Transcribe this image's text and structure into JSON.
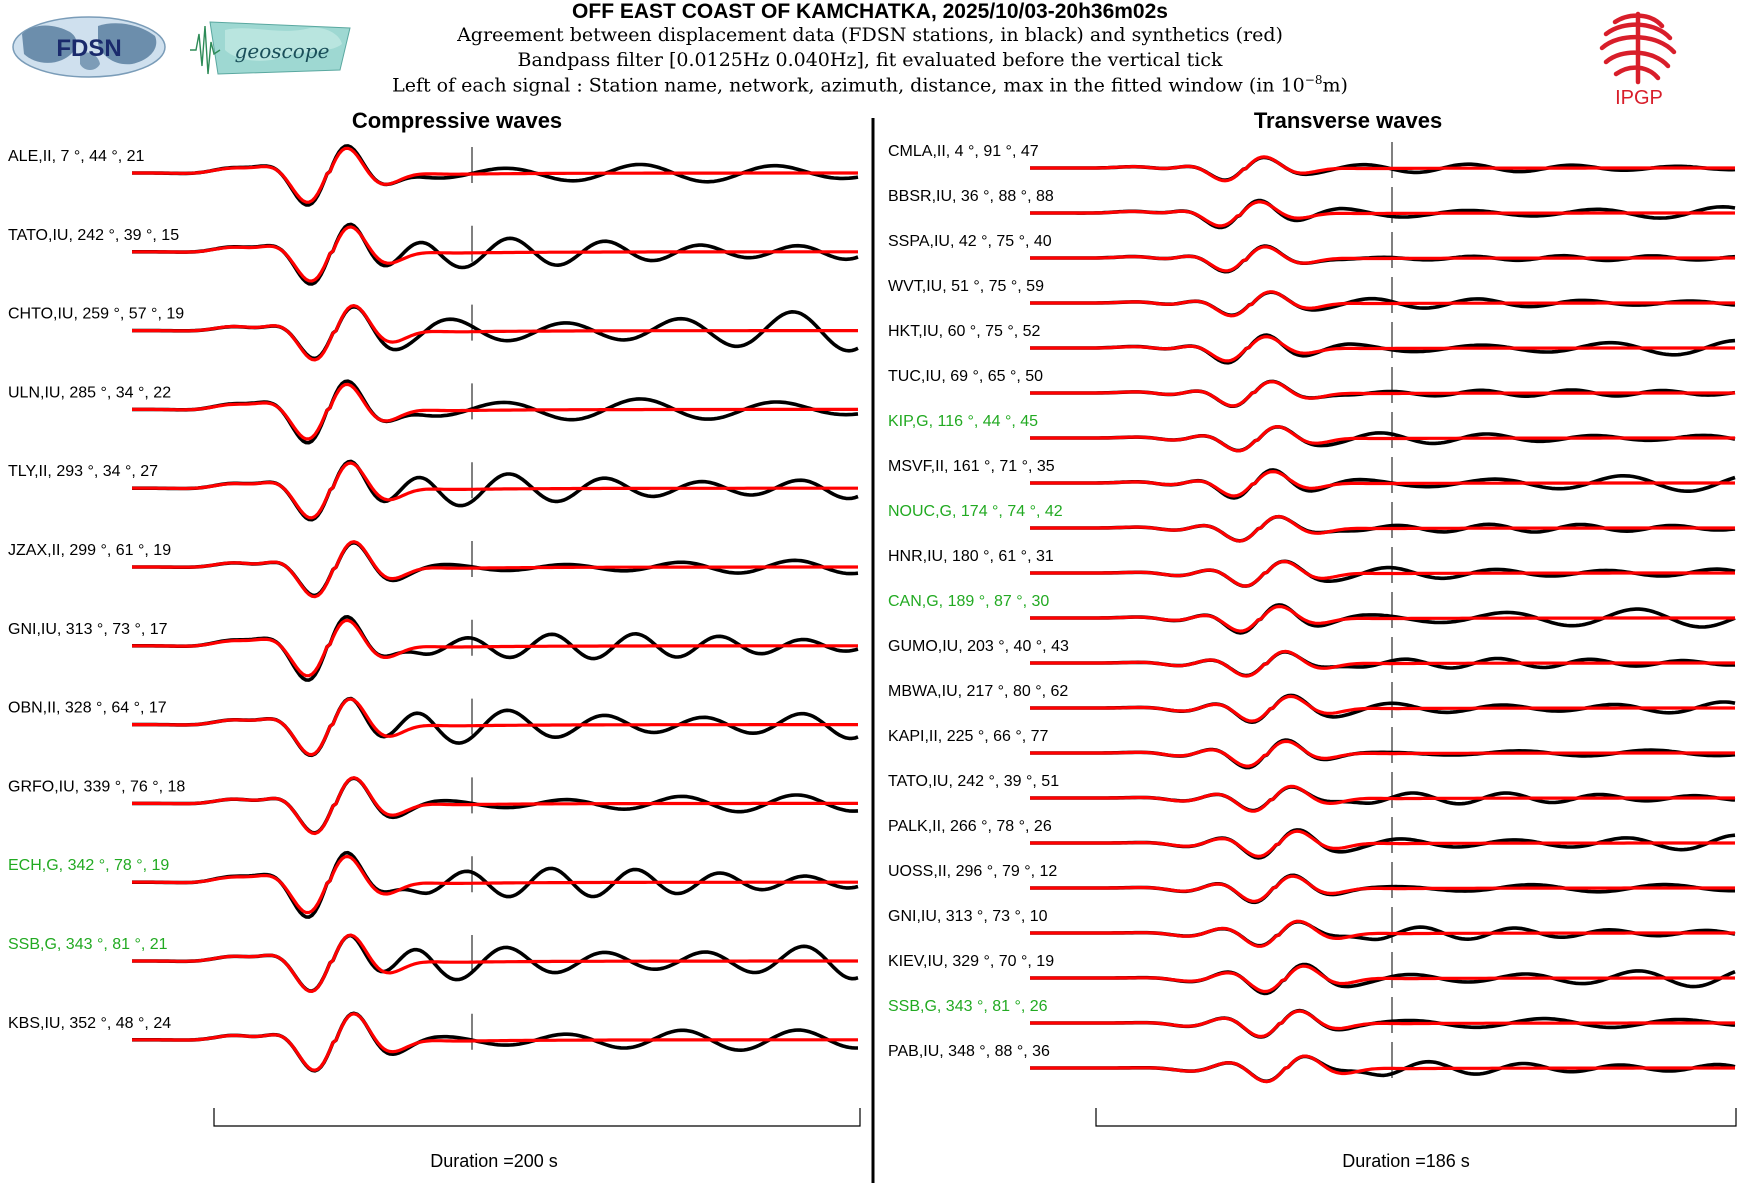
{
  "header": {
    "title": "OFF EAST COAST OF KAMCHATKA, 2025/10/03-20h36m02s",
    "line1": "Agreement between displacement data (FDSN stations, in black) and synthetics (red)",
    "line2": "Bandpass filter [0.0125Hz 0.040Hz], fit evaluated before the vertical tick",
    "line3_prefix": "Left of each signal : Station name, network, azimuth, distance, max in the fitted window (in 10",
    "line3_exp": "−8",
    "line3_suffix": "m)"
  },
  "logos": {
    "fdsn": "FDSN",
    "geoscope": "geoscope",
    "ipgp": "IPGP"
  },
  "colors": {
    "data": "#000000",
    "synthetic": "#ff0000",
    "geoscope_station": "#22aa22",
    "ipgp_red": "#d81e2a"
  },
  "chart_data": [
    {
      "type": "line",
      "title": "Compressive waves",
      "duration_label": "Duration =200 s",
      "duration_s": 200,
      "series_legend": {
        "data": "displacement data (black)",
        "synthetic": "synthetics (red)"
      },
      "traces": [
        {
          "station": "ALE",
          "network": "II",
          "azimuth": 7,
          "distance": 44,
          "max": 21,
          "geoscope": false
        },
        {
          "station": "TATO",
          "network": "IU",
          "azimuth": 242,
          "distance": 39,
          "max": 15,
          "geoscope": false
        },
        {
          "station": "CHTO",
          "network": "IU",
          "azimuth": 259,
          "distance": 57,
          "max": 19,
          "geoscope": false
        },
        {
          "station": "ULN",
          "network": "IU",
          "azimuth": 285,
          "distance": 34,
          "max": 22,
          "geoscope": false
        },
        {
          "station": "TLY",
          "network": "II",
          "azimuth": 293,
          "distance": 34,
          "max": 27,
          "geoscope": false
        },
        {
          "station": "JZAX",
          "network": "II",
          "azimuth": 299,
          "distance": 61,
          "max": 19,
          "geoscope": false
        },
        {
          "station": "GNI",
          "network": "IU",
          "azimuth": 313,
          "distance": 73,
          "max": 17,
          "geoscope": false
        },
        {
          "station": "OBN",
          "network": "II",
          "azimuth": 328,
          "distance": 64,
          "max": 17,
          "geoscope": false
        },
        {
          "station": "GRFO",
          "network": "IU",
          "azimuth": 339,
          "distance": 76,
          "max": 18,
          "geoscope": false
        },
        {
          "station": "ECH",
          "network": "G",
          "azimuth": 342,
          "distance": 78,
          "max": 19,
          "geoscope": true
        },
        {
          "station": "SSB",
          "network": "G",
          "azimuth": 343,
          "distance": 81,
          "max": 21,
          "geoscope": true
        },
        {
          "station": "KBS",
          "network": "IU",
          "azimuth": 352,
          "distance": 48,
          "max": 24,
          "geoscope": false
        }
      ]
    },
    {
      "type": "line",
      "title": "Transverse waves",
      "duration_label": "Duration =186 s",
      "duration_s": 186,
      "series_legend": {
        "data": "displacement data (black)",
        "synthetic": "synthetics (red)"
      },
      "traces": [
        {
          "station": "CMLA",
          "network": "II",
          "azimuth": 4,
          "distance": 91,
          "max": 47,
          "geoscope": false
        },
        {
          "station": "BBSR",
          "network": "IU",
          "azimuth": 36,
          "distance": 88,
          "max": 88,
          "geoscope": false
        },
        {
          "station": "SSPA",
          "network": "IU",
          "azimuth": 42,
          "distance": 75,
          "max": 40,
          "geoscope": false
        },
        {
          "station": "WVT",
          "network": "IU",
          "azimuth": 51,
          "distance": 75,
          "max": 59,
          "geoscope": false
        },
        {
          "station": "HKT",
          "network": "IU",
          "azimuth": 60,
          "distance": 75,
          "max": 52,
          "geoscope": false
        },
        {
          "station": "TUC",
          "network": "IU",
          "azimuth": 69,
          "distance": 65,
          "max": 50,
          "geoscope": false
        },
        {
          "station": "KIP",
          "network": "G",
          "azimuth": 116,
          "distance": 44,
          "max": 45,
          "geoscope": true
        },
        {
          "station": "MSVF",
          "network": "II",
          "azimuth": 161,
          "distance": 71,
          "max": 35,
          "geoscope": false
        },
        {
          "station": "NOUC",
          "network": "G",
          "azimuth": 174,
          "distance": 74,
          "max": 42,
          "geoscope": true
        },
        {
          "station": "HNR",
          "network": "IU",
          "azimuth": 180,
          "distance": 61,
          "max": 31,
          "geoscope": false
        },
        {
          "station": "CAN",
          "network": "G",
          "azimuth": 189,
          "distance": 87,
          "max": 30,
          "geoscope": true
        },
        {
          "station": "GUMO",
          "network": "IU",
          "azimuth": 203,
          "distance": 40,
          "max": 43,
          "geoscope": false
        },
        {
          "station": "MBWA",
          "network": "IU",
          "azimuth": 217,
          "distance": 80,
          "max": 62,
          "geoscope": false
        },
        {
          "station": "KAPI",
          "network": "II",
          "azimuth": 225,
          "distance": 66,
          "max": 77,
          "geoscope": false
        },
        {
          "station": "TATO",
          "network": "IU",
          "azimuth": 242,
          "distance": 39,
          "max": 51,
          "geoscope": false
        },
        {
          "station": "PALK",
          "network": "II",
          "azimuth": 266,
          "distance": 78,
          "max": 26,
          "geoscope": false
        },
        {
          "station": "UOSS",
          "network": "II",
          "azimuth": 296,
          "distance": 79,
          "max": 12,
          "geoscope": false
        },
        {
          "station": "GNI",
          "network": "IU",
          "azimuth": 313,
          "distance": 73,
          "max": 10,
          "geoscope": false
        },
        {
          "station": "KIEV",
          "network": "IU",
          "azimuth": 329,
          "distance": 70,
          "max": 19,
          "geoscope": false
        },
        {
          "station": "SSB",
          "network": "G",
          "azimuth": 343,
          "distance": 81,
          "max": 26,
          "geoscope": true
        },
        {
          "station": "PAB",
          "network": "IU",
          "azimuth": 348,
          "distance": 88,
          "max": 36,
          "geoscope": false
        }
      ]
    }
  ]
}
